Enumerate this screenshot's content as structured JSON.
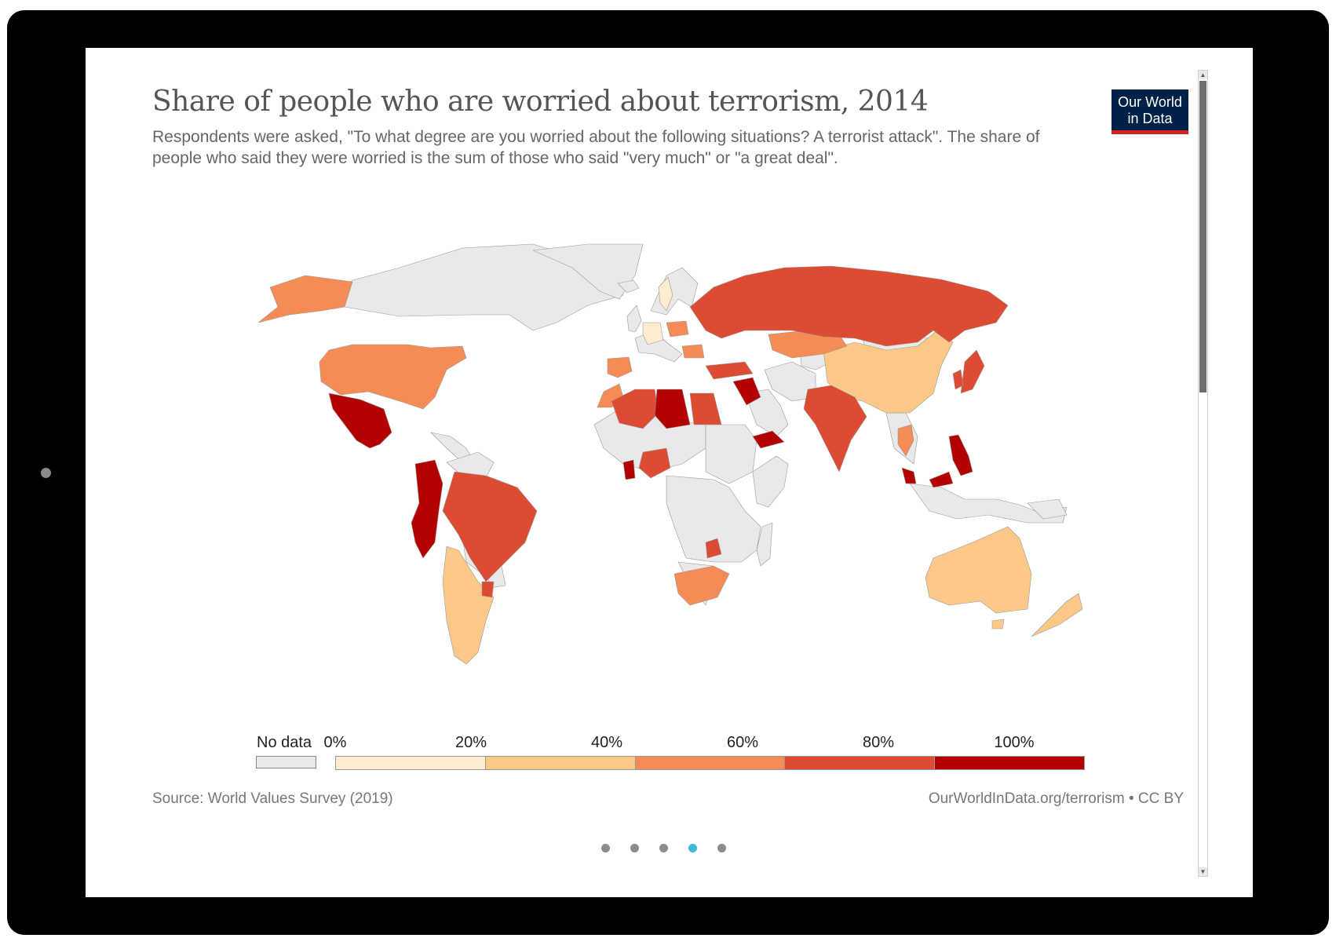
{
  "header": {
    "title": "Share of people who are worried about terrorism, 2014",
    "subtitle": "Respondents were asked, \"To what degree are you worried about the following situations? A terrorist attack\". The share of people who said they were worried is the sum of those who said \"very much\" or \"a great deal\"."
  },
  "logo": {
    "line1": "Our World",
    "line2": "in Data"
  },
  "legend": {
    "no_data_label": "No data",
    "ticks": [
      "0%",
      "20%",
      "40%",
      "60%",
      "80%",
      "100%"
    ],
    "bins": [
      {
        "range": "0-20%",
        "color": "#fdecd0"
      },
      {
        "range": "20-40%",
        "color": "#fcc888"
      },
      {
        "range": "40-60%",
        "color": "#f58b55"
      },
      {
        "range": "60-80%",
        "color": "#de4b33"
      },
      {
        "range": "80-100%",
        "color": "#b30000"
      }
    ],
    "no_data_color": "#e9e9e9"
  },
  "footer": {
    "source": "Source: World Values Survey (2019)",
    "credit": "OurWorldInData.org/terrorism • CC BY"
  },
  "pager": {
    "count": 5,
    "active_index": 3,
    "active_color": "#3fb8d8",
    "inactive_color": "#8c8c8c"
  },
  "map_data": {
    "year": 2014,
    "countries": [
      {
        "name": "United States",
        "bin": 2
      },
      {
        "name": "Mexico",
        "bin": 4
      },
      {
        "name": "Colombia",
        "bin": 4
      },
      {
        "name": "Ecuador",
        "bin": 3
      },
      {
        "name": "Peru",
        "bin": 4
      },
      {
        "name": "Brazil",
        "bin": 3
      },
      {
        "name": "Uruguay",
        "bin": 3
      },
      {
        "name": "Argentina",
        "bin": 1
      },
      {
        "name": "Chile",
        "bin": 1
      },
      {
        "name": "Haiti",
        "bin": 4
      },
      {
        "name": "Trinidad and Tobago",
        "bin": 3
      },
      {
        "name": "Spain",
        "bin": 2
      },
      {
        "name": "Morocco",
        "bin": 2
      },
      {
        "name": "Algeria",
        "bin": 3
      },
      {
        "name": "Libya",
        "bin": 4
      },
      {
        "name": "Egypt",
        "bin": 3
      },
      {
        "name": "Netherlands",
        "bin": 1
      },
      {
        "name": "Germany",
        "bin": 1
      },
      {
        "name": "Sweden",
        "bin": 1
      },
      {
        "name": "Poland",
        "bin": 2
      },
      {
        "name": "Belarus",
        "bin": 3
      },
      {
        "name": "Ukraine",
        "bin": 3
      },
      {
        "name": "Romania",
        "bin": 2
      },
      {
        "name": "Russia",
        "bin": 3
      },
      {
        "name": "Turkey",
        "bin": 3
      },
      {
        "name": "Georgia",
        "bin": 4
      },
      {
        "name": "Armenia",
        "bin": 3
      },
      {
        "name": "Azerbaijan",
        "bin": 3
      },
      {
        "name": "Kazakhstan",
        "bin": 2
      },
      {
        "name": "Kyrgyzstan",
        "bin": 2
      },
      {
        "name": "Uzbekistan",
        "bin": 3
      },
      {
        "name": "Iraq",
        "bin": 4
      },
      {
        "name": "Lebanon",
        "bin": 4
      },
      {
        "name": "Palestine",
        "bin": 4
      },
      {
        "name": "Jordan",
        "bin": 3
      },
      {
        "name": "Kuwait",
        "bin": 4
      },
      {
        "name": "Qatar",
        "bin": 2
      },
      {
        "name": "Yemen",
        "bin": 4
      },
      {
        "name": "Pakistan",
        "bin": 3
      },
      {
        "name": "India",
        "bin": 3
      },
      {
        "name": "China",
        "bin": 1
      },
      {
        "name": "South Korea",
        "bin": 3
      },
      {
        "name": "Japan",
        "bin": 3
      },
      {
        "name": "Taiwan",
        "bin": 2
      },
      {
        "name": "Hong Kong",
        "bin": 2
      },
      {
        "name": "Thailand",
        "bin": 2
      },
      {
        "name": "Malaysia",
        "bin": 4
      },
      {
        "name": "Singapore",
        "bin": 4
      },
      {
        "name": "Philippines",
        "bin": 4
      },
      {
        "name": "Ghana",
        "bin": 4
      },
      {
        "name": "Nigeria",
        "bin": 3
      },
      {
        "name": "Rwanda",
        "bin": 4
      },
      {
        "name": "Zimbabwe",
        "bin": 3
      },
      {
        "name": "South Africa",
        "bin": 2
      },
      {
        "name": "Australia",
        "bin": 1
      },
      {
        "name": "New Zealand",
        "bin": 1
      }
    ]
  }
}
